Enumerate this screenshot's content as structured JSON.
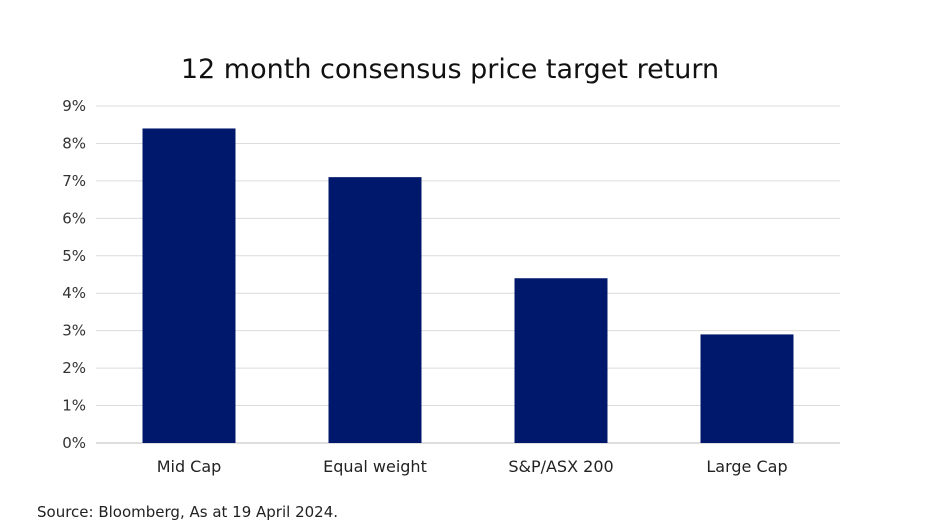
{
  "chart_data": {
    "type": "bar",
    "title": "12 month consensus price target return",
    "categories": [
      "Mid Cap",
      "Equal weight",
      "S&P/ASX 200",
      "Large Cap"
    ],
    "values": [
      8.4,
      7.1,
      4.4,
      2.9
    ],
    "yticks": [
      "0%",
      "1%",
      "2%",
      "3%",
      "4%",
      "5%",
      "6%",
      "7%",
      "8%",
      "9%"
    ],
    "ylim": [
      0,
      9
    ],
    "grid": true,
    "bar_color": "#00186b"
  },
  "footer": {
    "source": "Source: Bloomberg, As at 19 April 2024."
  }
}
